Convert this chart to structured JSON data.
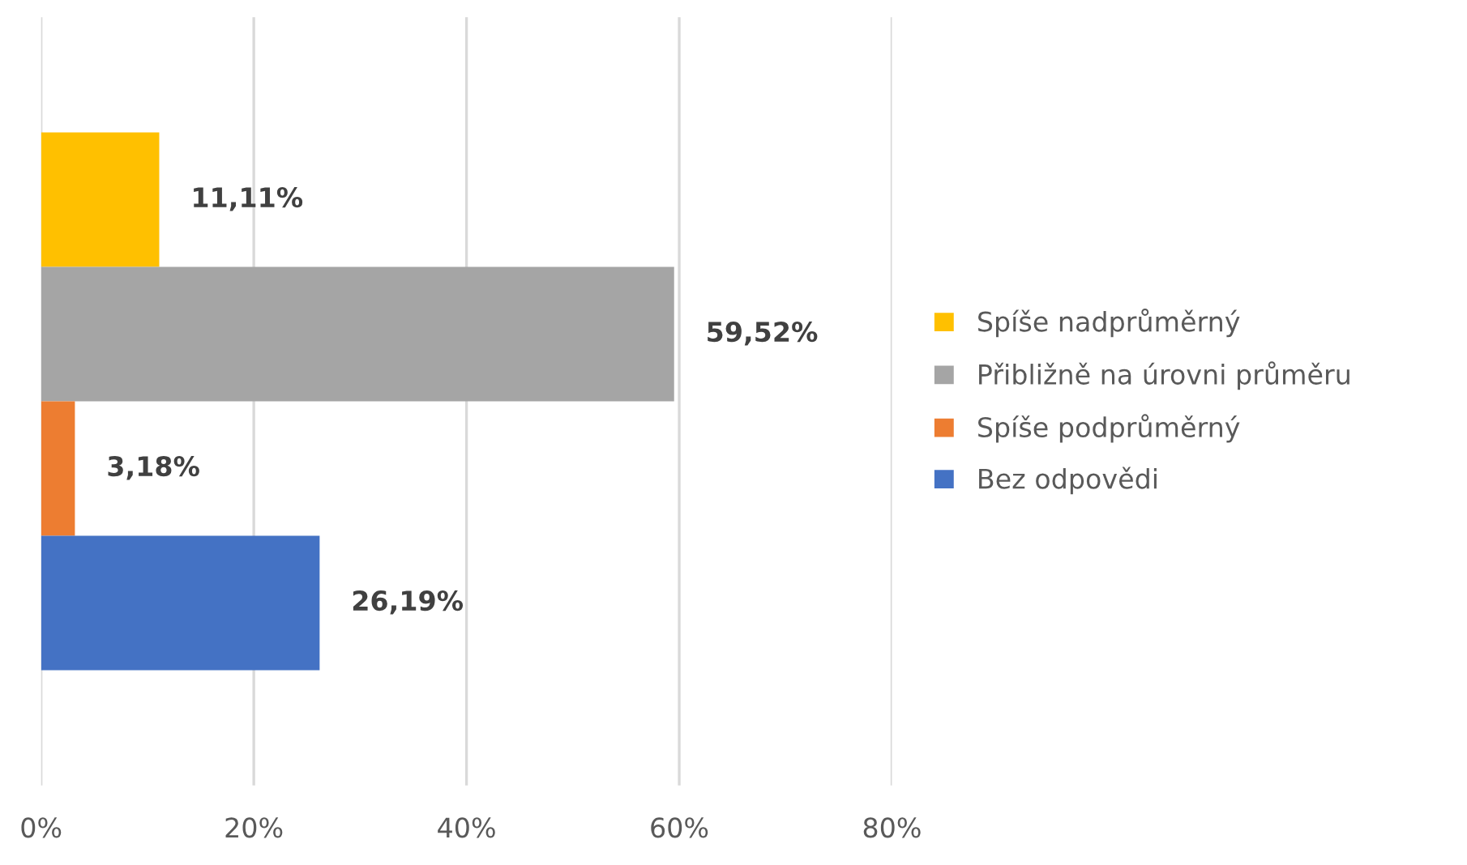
{
  "chart_data": {
    "type": "bar",
    "orientation": "horizontal",
    "categories": [
      null
    ],
    "series": [
      {
        "name": "Spíše nadprůměrný",
        "color": "#ffc000",
        "values": [
          11.11
        ],
        "value_labels": [
          "11,11%"
        ]
      },
      {
        "name": "Přibližně na úrovni průměru",
        "color": "#a5a5a5",
        "values": [
          59.52
        ],
        "value_labels": [
          "59,52%"
        ]
      },
      {
        "name": "Spíše podprůměrný",
        "color": "#ed7d31",
        "values": [
          3.18
        ],
        "value_labels": [
          "3,18%"
        ]
      },
      {
        "name": "Bez odpovědi",
        "color": "#4472c4",
        "values": [
          26.19
        ],
        "value_labels": [
          "26,19%"
        ]
      }
    ],
    "xlim": [
      0,
      80
    ],
    "xticks": [
      {
        "value": 0,
        "label": "0%"
      },
      {
        "value": 20,
        "label": "20%"
      },
      {
        "value": 40,
        "label": "40%"
      },
      {
        "value": 60,
        "label": "60%"
      },
      {
        "value": 80,
        "label": "80%"
      }
    ],
    "grid": "x",
    "legend": "right"
  }
}
